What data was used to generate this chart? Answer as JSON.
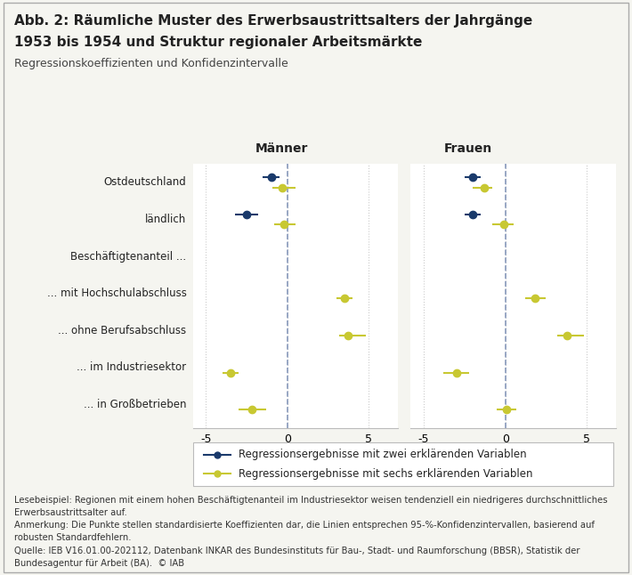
{
  "title_line1": "Abb. 2: Räumliche Muster des Erwerbsaustrittsalters der Jahrgänge",
  "title_line2": "1953 bis 1954 und Struktur regionaler Arbeitsmärkte",
  "subtitle": "Regressionskoeffizienten und Konfidenzintervalle",
  "col_headers": [
    "Männer",
    "Frauen"
  ],
  "y_labels": [
    "Ostdeutschland",
    "ländlich",
    "Beschäftigtenanteil ...",
    "... mit Hochschulabschluss",
    "... ohne Berufsabschluss",
    "... im Industriesektor",
    "... in Großbetrieben"
  ],
  "maenner": {
    "blue": {
      "Ostdeutschland": {
        "val": -1.0,
        "lo": -1.5,
        "hi": -0.5
      },
      "ländlich": {
        "val": -2.5,
        "lo": -3.2,
        "hi": -1.8
      },
      "Beschäftigtenanteil ...": null,
      "... mit Hochschulabschluss": null,
      "... ohne Berufsabschluss": null,
      "... im Industriesektor": null,
      "... in Großbetrieben": null
    },
    "yellow": {
      "Ostdeutschland": {
        "val": -0.3,
        "lo": -0.9,
        "hi": 0.5
      },
      "ländlich": {
        "val": -0.2,
        "lo": -0.8,
        "hi": 0.5
      },
      "Beschäftigtenanteil ...": null,
      "... mit Hochschulabschluss": {
        "val": 3.5,
        "lo": 3.0,
        "hi": 4.0
      },
      "... ohne Berufsabschluss": {
        "val": 3.7,
        "lo": 3.2,
        "hi": 4.8
      },
      "... im Industriesektor": {
        "val": -3.5,
        "lo": -4.0,
        "hi": -3.0
      },
      "... in Großbetrieben": {
        "val": -2.2,
        "lo": -3.0,
        "hi": -1.3
      }
    }
  },
  "frauen": {
    "blue": {
      "Ostdeutschland": {
        "val": -2.0,
        "lo": -2.5,
        "hi": -1.5
      },
      "ländlich": {
        "val": -2.0,
        "lo": -2.5,
        "hi": -1.5
      },
      "Beschäftigtenanteil ...": null,
      "... mit Hochschulabschluss": null,
      "... ohne Berufsabschluss": null,
      "... im Industriesektor": null,
      "... in Großbetrieben": null
    },
    "yellow": {
      "Ostdeutschland": {
        "val": -1.3,
        "lo": -2.0,
        "hi": -0.8
      },
      "ländlich": {
        "val": -0.1,
        "lo": -0.8,
        "hi": 0.5
      },
      "Beschäftigtenanteil ...": null,
      "... mit Hochschulabschluss": {
        "val": 1.8,
        "lo": 1.2,
        "hi": 2.5
      },
      "... ohne Berufsabschluss": {
        "val": 3.8,
        "lo": 3.2,
        "hi": 4.8
      },
      "... im Industriesektor": {
        "val": -3.0,
        "lo": -3.8,
        "hi": -2.2
      },
      "... in Großbetrieben": {
        "val": 0.1,
        "lo": -0.5,
        "hi": 0.7
      }
    }
  },
  "xlim": [
    -5.8,
    6.8
  ],
  "xticks": [
    -5,
    0,
    5
  ],
  "color_blue": "#1a3a6b",
  "color_yellow": "#c8c832",
  "legend_label_blue": "Regressionsergebnisse mit zwei erklärenden Variablen",
  "legend_label_yellow": "Regressionsergebnisse mit sechs erklärenden Variablen",
  "footnote1": "Lesebeispiel: Regionen mit einem hohen Beschäftigtenanteil im Industriesektor weisen tendenziell ein niedrigeres durchschnittliches",
  "footnote2": "Erwerbsaustrittsalter auf.",
  "footnote3": "Anmerkung: Die Punkte stellen standardisierte Koeffizienten dar, die Linien entsprechen 95-%-Konfidenzintervallen, basierend auf",
  "footnote4": "robusten Standardfehlern.",
  "footnote5": "Quelle: IEB V16.01.00-202112, Datenbank INKAR des Bundesinstituts für Bau-, Stadt- und Raumforschung (BBSR), Statistik der",
  "footnote6": "Bundesagentur für Arbeit (BA).  © IAB",
  "background_color": "#f5f5f0",
  "plot_bg_color": "#ffffff"
}
